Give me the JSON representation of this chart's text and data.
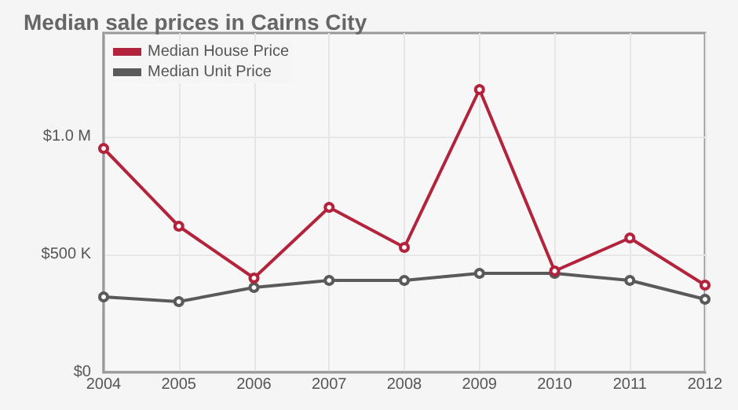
{
  "chart_data": {
    "type": "line",
    "title": "Median sale prices in Cairns City",
    "categories": [
      "2004",
      "2005",
      "2006",
      "2007",
      "2008",
      "2009",
      "2010",
      "2011",
      "2012"
    ],
    "series": [
      {
        "name": "Median House Price",
        "color": "#b3233b",
        "values": [
          950000,
          620000,
          400000,
          700000,
          530000,
          1200000,
          430000,
          570000,
          370000
        ]
      },
      {
        "name": "Median Unit Price",
        "color": "#5a5a5a",
        "values": [
          320000,
          300000,
          360000,
          390000,
          390000,
          420000,
          420000,
          390000,
          310000
        ]
      }
    ],
    "ylim": [
      0,
      1440000
    ],
    "yticks": [
      {
        "value": 0,
        "label": "$0"
      },
      {
        "value": 500000,
        "label": "$500 K"
      },
      {
        "value": 1000000,
        "label": "$1.0 M"
      }
    ],
    "grid": true,
    "legend": "top left",
    "marker": "circle",
    "line_style": "solid"
  }
}
